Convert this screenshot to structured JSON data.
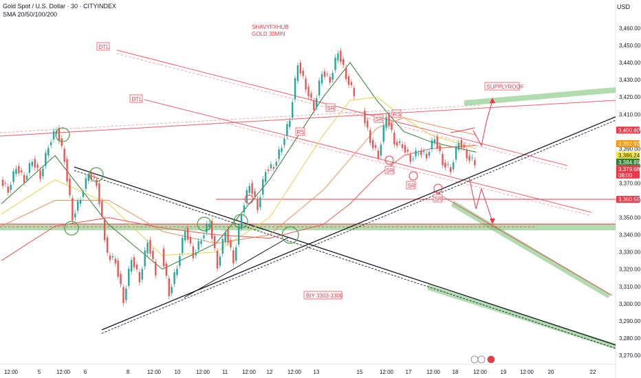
{
  "header": {
    "symbol_line": "Gold Spot / U.S. Dollar · 30 · CITYINDEX",
    "indicator_line": "SMA 20/50/100/200"
  },
  "axis": {
    "currency": "USD"
  },
  "chart_data": {
    "type": "line",
    "title": "Gold Spot / U.S. Dollar · 30 · CITYINDEX",
    "ylim": [
      3268,
      3465
    ],
    "y_ticks": [
      3270,
      3280,
      3290,
      3300,
      3310,
      3320,
      3330,
      3340,
      3350,
      3360,
      3370,
      3380,
      3390,
      3400,
      3410,
      3420,
      3430,
      3440,
      3450,
      3460
    ],
    "x_ticks": [
      "12:00",
      "5",
      "12:00",
      "6",
      "8",
      "12:00",
      "10",
      "12:00",
      "11",
      "12:00",
      "12",
      "12:00",
      "13",
      "15",
      "12:00",
      "17",
      "12:00",
      "18",
      "12:00",
      "19",
      "12:00",
      "20",
      "22"
    ],
    "series": [
      {
        "name": "",
        "color": "#26a69a",
        "x": [
          0,
          3,
          6,
          9,
          12,
          15,
          18,
          21,
          24,
          27,
          30,
          33,
          36,
          40,
          43,
          46,
          49,
          52,
          55,
          58
        ],
        "values": [
          3372,
          3366,
          3380,
          3372,
          3384,
          3374,
          3392,
          3402,
          3384,
          3350,
          3362,
          3376,
          3370,
          3328,
          3325,
          3302,
          3327,
          3314,
          3337,
          3318
        ]
      },
      {
        "name": "",
        "color": "#26a69a",
        "x": [
          60,
          63,
          66,
          69,
          72,
          75,
          78,
          81,
          84,
          87,
          90,
          93,
          96,
          99,
          102,
          105,
          108,
          111,
          114,
          117,
          120,
          123,
          126,
          129,
          132
        ],
        "values": [
          3332,
          3306,
          3322,
          3344,
          3328,
          3338,
          3348,
          3322,
          3343,
          3325,
          3353,
          3370,
          3356,
          3378,
          3380,
          3392,
          3408,
          3440,
          3426,
          3414,
          3435,
          3430,
          3447,
          3432,
          3422
        ]
      },
      {
        "name": "",
        "color": "#26a69a",
        "x": [
          135,
          138,
          141,
          144,
          147,
          150,
          153,
          156,
          159,
          162,
          165,
          168,
          171,
          174,
          177
        ],
        "values": [
          3412,
          3395,
          3386,
          3410,
          3394,
          3392,
          3384,
          3389,
          3386,
          3397,
          3382,
          3378,
          3395,
          3386,
          3382
        ]
      }
    ],
    "moving_averages": [
      {
        "name": "SMA 20",
        "color": "#2e7d32",
        "x": [
          0,
          20,
          40,
          60,
          80,
          100,
          120,
          130,
          140,
          150,
          160,
          177
        ],
        "values": [
          3358,
          3386,
          3346,
          3320,
          3335,
          3372,
          3420,
          3440,
          3418,
          3400,
          3394,
          3388
        ]
      },
      {
        "name": "SMA 50",
        "color": "#e6d34a",
        "x": [
          0,
          20,
          40,
          60,
          80,
          100,
          120,
          130,
          140,
          150,
          160,
          177
        ],
        "values": [
          3352,
          3372,
          3358,
          3328,
          3330,
          3350,
          3398,
          3418,
          3420,
          3408,
          3398,
          3390
        ]
      },
      {
        "name": "SMA 100",
        "color": "#f08f5c",
        "x": [
          0,
          20,
          40,
          60,
          80,
          100,
          120,
          130,
          140,
          150,
          160,
          177
        ],
        "values": [
          3345,
          3360,
          3360,
          3342,
          3335,
          3340,
          3366,
          3384,
          3402,
          3408,
          3404,
          3398
        ]
      },
      {
        "name": "SMA 200",
        "color": "#ef5350",
        "x": [
          0,
          20,
          40,
          60,
          80,
          100,
          120,
          130,
          140,
          150,
          160,
          177
        ],
        "values": [
          3325,
          3345,
          3350,
          3344,
          3340,
          3338,
          3346,
          3358,
          3374,
          3386,
          3390,
          3392
        ]
      }
    ],
    "price_labels": [
      {
        "value": 3400.8,
        "text": "3,400.80",
        "bg": "#f23645",
        "fg": "#ffffff"
      },
      {
        "value": 3392.92,
        "text": "3,392.92",
        "bg": "#ff9800",
        "fg": "#ffffff"
      },
      {
        "value": 3386.24,
        "text": "3,386.24",
        "bg": "#ffeb3b",
        "fg": "#131722"
      },
      {
        "value": 3384.89,
        "text": "3,384.89",
        "bg": "#2e7d32",
        "fg": "#ffffff"
      },
      {
        "value": 3379.68,
        "text": "3,379.68",
        "bg": "#f23645",
        "fg": "#ffffff",
        "sub": "08:00"
      },
      {
        "value": 3360.55,
        "text": "3,360.55",
        "bg": "#f23645",
        "fg": "#ffffff"
      }
    ],
    "annotations": [
      "SHAVYFXHUB",
      "GOLD 30MIN",
      "DTL",
      "DTL",
      "SUPPLYROOF",
      "RS",
      "SR",
      "RS",
      "SR",
      "SR",
      "SR",
      "BIY  3303-3300"
    ],
    "colors": {
      "up": "#26a69a",
      "down": "#ef5350",
      "support": "#7cc47c",
      "drawing": "#f23645"
    }
  }
}
